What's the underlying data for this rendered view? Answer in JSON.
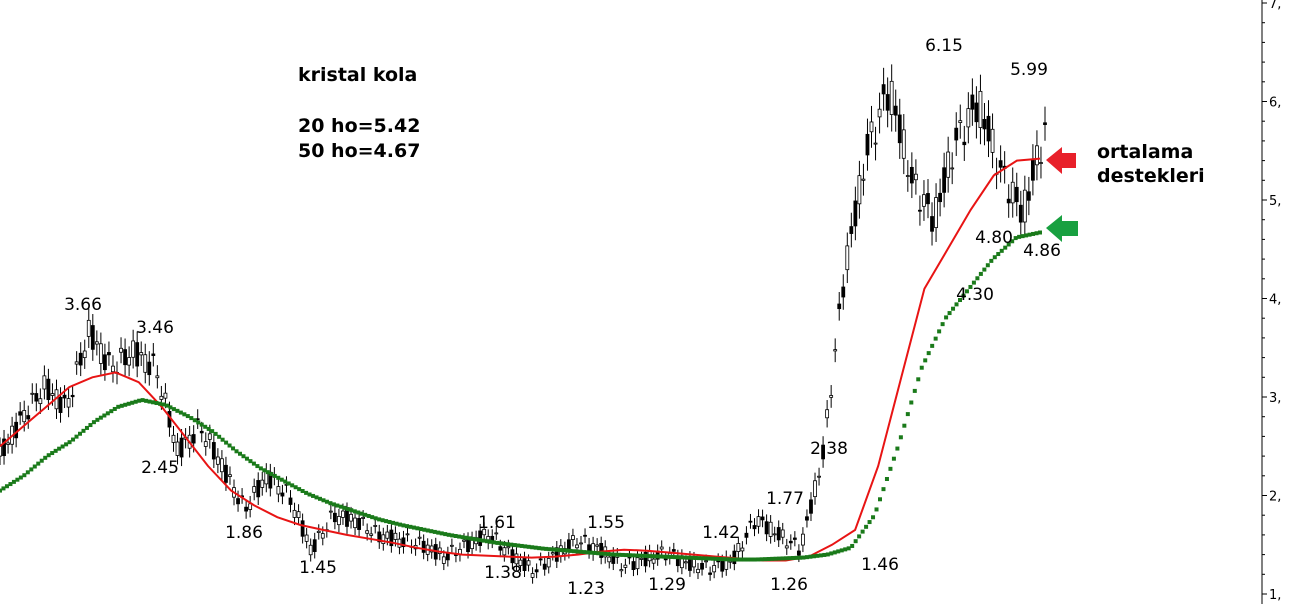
{
  "chart_data": {
    "type": "candlestick",
    "title": "kristal kola",
    "info_lines": [
      "20 ho=5.42",
      "50 ho=4.67"
    ],
    "side_note": [
      "ortalama",
      "destekleri"
    ],
    "y_axis_ticks": [
      "7,",
      "6,",
      "5,",
      "4,",
      "3,",
      "2,",
      "1,"
    ],
    "y_axis_tick_values": [
      7,
      6,
      5,
      4,
      3,
      2,
      1
    ],
    "ylim": [
      1,
      7
    ],
    "series": [
      {
        "name": "20 ho",
        "values": [
          2.5,
          2.7,
          2.9,
          3.1,
          3.2,
          3.25,
          3.15,
          2.9,
          2.6,
          2.3,
          2.05,
          1.9,
          1.78,
          1.7,
          1.65,
          1.6,
          1.56,
          1.52,
          1.47,
          1.43,
          1.4,
          1.39,
          1.38,
          1.37,
          1.38,
          1.4,
          1.43,
          1.45,
          1.44,
          1.42,
          1.4,
          1.38,
          1.36,
          1.34,
          1.34,
          1.38,
          1.5,
          1.65,
          2.3,
          3.2,
          4.1,
          4.5,
          4.9,
          5.25,
          5.4,
          5.42
        ]
      },
      {
        "name": "50 ho",
        "values": [
          2.05,
          2.2,
          2.4,
          2.55,
          2.75,
          2.9,
          2.97,
          2.92,
          2.8,
          2.65,
          2.45,
          2.28,
          2.15,
          2.02,
          1.92,
          1.84,
          1.76,
          1.7,
          1.65,
          1.6,
          1.56,
          1.52,
          1.49,
          1.46,
          1.44,
          1.42,
          1.4,
          1.39,
          1.38,
          1.37,
          1.36,
          1.35,
          1.35,
          1.36,
          1.37,
          1.4,
          1.47,
          1.8,
          2.5,
          3.3,
          3.8,
          4.1,
          4.4,
          4.62,
          4.67
        ]
      }
    ],
    "price": [
      2.4,
      2.8,
      3.1,
      2.9,
      3.66,
      3.3,
      3.46,
      3.3,
      2.45,
      2.7,
      2.3,
      1.86,
      2.2,
      2.0,
      1.45,
      1.8,
      1.75,
      1.6,
      1.55,
      1.5,
      1.38,
      1.5,
      1.61,
      1.4,
      1.23,
      1.4,
      1.55,
      1.45,
      1.29,
      1.35,
      1.42,
      1.3,
      1.26,
      1.35,
      1.77,
      1.6,
      1.46,
      2.38,
      4.3,
      5.5,
      6.15,
      5.2,
      4.8,
      5.6,
      5.99,
      5.3,
      4.86,
      5.7
    ],
    "annotations": [
      {
        "text": "3.66",
        "x": 6,
        "y": 3.66
      },
      {
        "text": "3.46",
        "x": 10,
        "y": 3.46
      },
      {
        "text": "2.45",
        "x": 12,
        "y": 2.45
      },
      {
        "text": "1.86",
        "x": 18,
        "y": 1.86
      },
      {
        "text": "1.45",
        "x": 23,
        "y": 1.45
      },
      {
        "text": "1.61",
        "x": 37,
        "y": 1.61
      },
      {
        "text": "1.38",
        "x": 38,
        "y": 1.38
      },
      {
        "text": "1.55",
        "x": 47,
        "y": 1.55
      },
      {
        "text": "1.23",
        "x": 45,
        "y": 1.23
      },
      {
        "text": "1.29",
        "x": 52,
        "y": 1.29
      },
      {
        "text": "1.42",
        "x": 56,
        "y": 1.42
      },
      {
        "text": "1.77",
        "x": 61,
        "y": 1.77
      },
      {
        "text": "1.26",
        "x": 63,
        "y": 1.26
      },
      {
        "text": "2.38",
        "x": 65,
        "y": 2.38
      },
      {
        "text": "1.46",
        "x": 69,
        "y": 1.46
      },
      {
        "text": "4.30",
        "x": 75,
        "y": 4.3
      },
      {
        "text": "4.80",
        "x": 78,
        "y": 4.8
      },
      {
        "text": "4.86",
        "x": 82,
        "y": 4.86
      },
      {
        "text": "6.15",
        "x": 74,
        "y": 6.15
      },
      {
        "text": "5.99",
        "x": 80,
        "y": 5.99
      }
    ],
    "colors": {
      "ma20": "#e81414",
      "ma50": "#1a7a1a",
      "candle": "#000000",
      "arrow_red": "#e8202a",
      "arrow_green": "#18a040"
    },
    "grid": false
  }
}
